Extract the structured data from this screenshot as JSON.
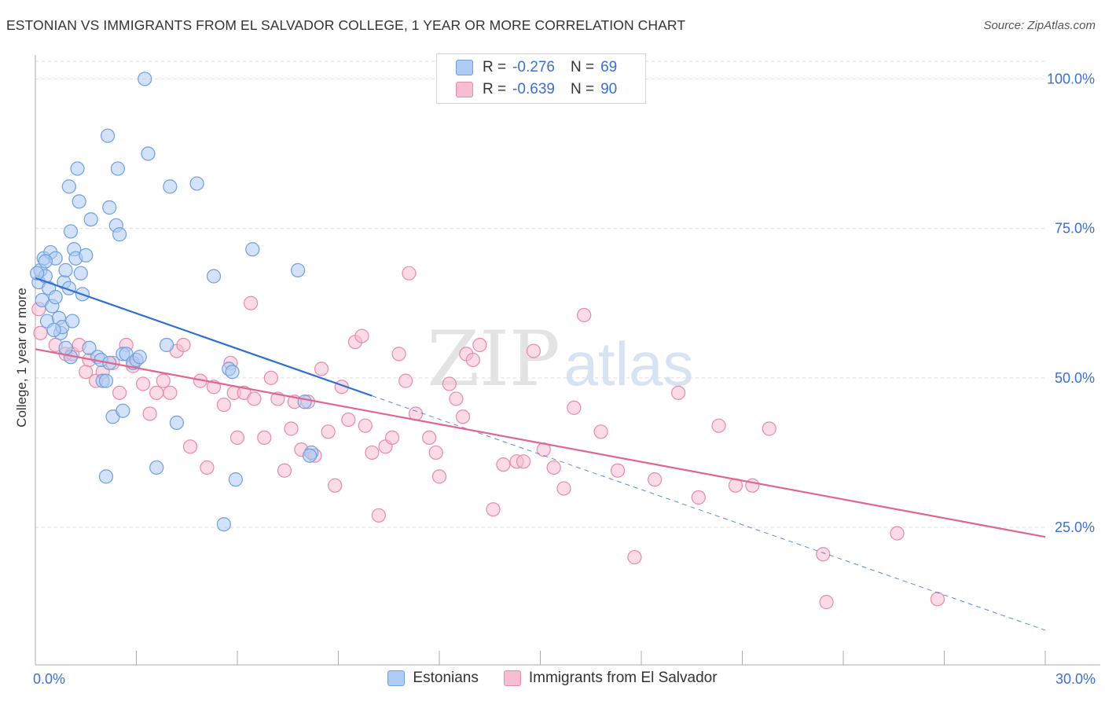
{
  "header": {
    "title": "ESTONIAN VS IMMIGRANTS FROM EL SALVADOR COLLEGE, 1 YEAR OR MORE CORRELATION CHART",
    "source": "Source: ZipAtlas.com"
  },
  "legend": {
    "rows": [
      {
        "r_label": "R =",
        "r_value": "-0.276",
        "n_label": "N =",
        "n_value": "69"
      },
      {
        "r_label": "R =",
        "r_value": "-0.639",
        "n_label": "N =",
        "n_value": "90"
      }
    ]
  },
  "bottom_legend": [
    "Estonians",
    "Immigrants from El Salvador"
  ],
  "watermark": {
    "part1": "ZIP",
    "part2": "atlas"
  },
  "chart_data": {
    "type": "scatter",
    "title": "ESTONIAN VS IMMIGRANTS FROM EL SALVADOR COLLEGE, 1 YEAR OR MORE CORRELATION CHART",
    "xlabel": "",
    "ylabel": "College, 1 year or more",
    "xlim": [
      0,
      30
    ],
    "ylim": [
      2,
      104
    ],
    "x_tick_labels": [
      {
        "value": 0,
        "label": "0.0%"
      },
      {
        "value": 30,
        "label": "30.0%"
      }
    ],
    "y_tick_labels": [
      {
        "value": 100,
        "label": "100.0%"
      },
      {
        "value": 75,
        "label": "75.0%"
      },
      {
        "value": 50,
        "label": "50.0%"
      },
      {
        "value": 25,
        "label": "25.0%"
      }
    ],
    "grid": true,
    "colors": {
      "estonians_fill": "#aecbf3",
      "estonians_stroke": "#6f9fdc",
      "estonians_line": "#2f6fd0",
      "salvador_fill": "#f7bdd0",
      "salvador_stroke": "#e68aaa",
      "salvador_line": "#e0668f",
      "tick_label": "#3b6fcf",
      "grid": "#dddddd"
    },
    "series": [
      {
        "name": "Estonians",
        "r": -0.276,
        "n": 69,
        "trend": {
          "x0": 0,
          "y0": 66.7,
          "x1": 10,
          "y1": 47.0,
          "dash_to_x": 30,
          "dash_to_y": 7.8
        },
        "points": [
          [
            0.1,
            66
          ],
          [
            0.15,
            68
          ],
          [
            0.2,
            63
          ],
          [
            0.25,
            70
          ],
          [
            0.3,
            67
          ],
          [
            0.35,
            59.5
          ],
          [
            0.4,
            65
          ],
          [
            0.45,
            71
          ],
          [
            0.5,
            62
          ],
          [
            0.6,
            70
          ],
          [
            0.6,
            63.5
          ],
          [
            0.7,
            60
          ],
          [
            0.75,
            57.5
          ],
          [
            0.8,
            58.5
          ],
          [
            0.85,
            66
          ],
          [
            0.9,
            68
          ],
          [
            1.0,
            65
          ],
          [
            1.05,
            53.5
          ],
          [
            1.1,
            59.5
          ],
          [
            1.15,
            71.5
          ],
          [
            1.2,
            70
          ],
          [
            1.25,
            85
          ],
          [
            1.3,
            79.5
          ],
          [
            1.35,
            67.5
          ],
          [
            1.5,
            70.5
          ],
          [
            1.05,
            74.5
          ],
          [
            1.0,
            82
          ],
          [
            1.6,
            55
          ],
          [
            1.65,
            76.5
          ],
          [
            1.85,
            53.5
          ],
          [
            1.95,
            53
          ],
          [
            2.0,
            49.5
          ],
          [
            2.1,
            33.5
          ],
          [
            2.2,
            78.5
          ],
          [
            2.2,
            52.5
          ],
          [
            2.15,
            90.5
          ],
          [
            2.3,
            43.5
          ],
          [
            2.4,
            75.5
          ],
          [
            2.45,
            85
          ],
          [
            2.5,
            74
          ],
          [
            2.6,
            54
          ],
          [
            2.6,
            44.5
          ],
          [
            2.7,
            54
          ],
          [
            2.9,
            52.5
          ],
          [
            3.0,
            53
          ],
          [
            3.1,
            53.5
          ],
          [
            3.25,
            100
          ],
          [
            3.35,
            87.5
          ],
          [
            3.6,
            35
          ],
          [
            3.9,
            55.5
          ],
          [
            4.0,
            82
          ],
          [
            4.2,
            42.5
          ],
          [
            4.8,
            82.5
          ],
          [
            5.3,
            67
          ],
          [
            5.75,
            51.5
          ],
          [
            5.85,
            51
          ],
          [
            5.95,
            33
          ],
          [
            5.6,
            25.5
          ],
          [
            6.45,
            71.5
          ],
          [
            7.8,
            68
          ],
          [
            8.0,
            46
          ],
          [
            8.2,
            37.5
          ],
          [
            8.15,
            37
          ],
          [
            0.05,
            67.5
          ],
          [
            0.3,
            69.5
          ],
          [
            0.55,
            58
          ],
          [
            1.4,
            64
          ],
          [
            2.1,
            49.5
          ],
          [
            0.9,
            55
          ]
        ]
      },
      {
        "name": "Immigrants from El Salvador",
        "r": -0.639,
        "n": 90,
        "trend": {
          "x0": 0,
          "y0": 54.8,
          "x1": 30,
          "y1": 23.4
        },
        "points": [
          [
            0.1,
            61.5
          ],
          [
            0.15,
            57.5
          ],
          [
            0.6,
            55.5
          ],
          [
            0.9,
            54
          ],
          [
            1.1,
            54
          ],
          [
            1.3,
            55.5
          ],
          [
            1.5,
            51
          ],
          [
            1.6,
            53
          ],
          [
            1.8,
            49.5
          ],
          [
            2.0,
            51
          ],
          [
            2.3,
            52.5
          ],
          [
            2.5,
            47.5
          ],
          [
            2.7,
            55.5
          ],
          [
            2.9,
            52
          ],
          [
            3.2,
            49
          ],
          [
            3.4,
            44
          ],
          [
            3.6,
            47.5
          ],
          [
            3.8,
            49.5
          ],
          [
            4.0,
            47.5
          ],
          [
            4.2,
            54.5
          ],
          [
            4.4,
            55.5
          ],
          [
            4.6,
            38.5
          ],
          [
            4.9,
            49.5
          ],
          [
            5.1,
            35
          ],
          [
            5.3,
            48.5
          ],
          [
            5.6,
            45.5
          ],
          [
            5.8,
            52.5
          ],
          [
            5.9,
            47.5
          ],
          [
            6.0,
            40
          ],
          [
            6.2,
            47.5
          ],
          [
            6.4,
            62.5
          ],
          [
            6.5,
            46.5
          ],
          [
            6.8,
            40
          ],
          [
            7.0,
            50
          ],
          [
            7.2,
            46.5
          ],
          [
            7.4,
            34.5
          ],
          [
            7.6,
            41.5
          ],
          [
            7.7,
            46
          ],
          [
            7.9,
            38
          ],
          [
            8.1,
            46
          ],
          [
            8.3,
            37
          ],
          [
            8.5,
            51.5
          ],
          [
            8.7,
            41
          ],
          [
            8.9,
            32
          ],
          [
            9.1,
            48.5
          ],
          [
            9.3,
            43
          ],
          [
            9.5,
            56
          ],
          [
            9.7,
            57
          ],
          [
            9.8,
            42
          ],
          [
            10.0,
            37.5
          ],
          [
            10.2,
            27
          ],
          [
            10.4,
            38.5
          ],
          [
            10.6,
            40
          ],
          [
            10.8,
            54
          ],
          [
            11.0,
            49.5
          ],
          [
            11.1,
            67.5
          ],
          [
            11.3,
            44
          ],
          [
            11.7,
            40
          ],
          [
            11.9,
            37.5
          ],
          [
            12.0,
            33.5
          ],
          [
            12.3,
            49
          ],
          [
            12.5,
            46.5
          ],
          [
            12.7,
            43.5
          ],
          [
            12.8,
            54
          ],
          [
            13.0,
            53
          ],
          [
            13.2,
            55.5
          ],
          [
            13.6,
            28
          ],
          [
            13.9,
            35.5
          ],
          [
            14.3,
            36
          ],
          [
            14.5,
            36
          ],
          [
            14.8,
            54.5
          ],
          [
            15.1,
            38
          ],
          [
            15.4,
            35
          ],
          [
            15.7,
            31.5
          ],
          [
            16.0,
            45
          ],
          [
            16.3,
            60.5
          ],
          [
            16.8,
            41
          ],
          [
            17.3,
            34.5
          ],
          [
            17.8,
            20
          ],
          [
            18.4,
            33
          ],
          [
            19.1,
            47.5
          ],
          [
            19.7,
            30
          ],
          [
            20.3,
            42
          ],
          [
            20.8,
            32
          ],
          [
            21.3,
            32
          ],
          [
            21.8,
            41.5
          ],
          [
            23.4,
            20.5
          ],
          [
            23.5,
            12.5
          ],
          [
            25.6,
            24
          ],
          [
            26.8,
            13
          ]
        ]
      }
    ]
  }
}
